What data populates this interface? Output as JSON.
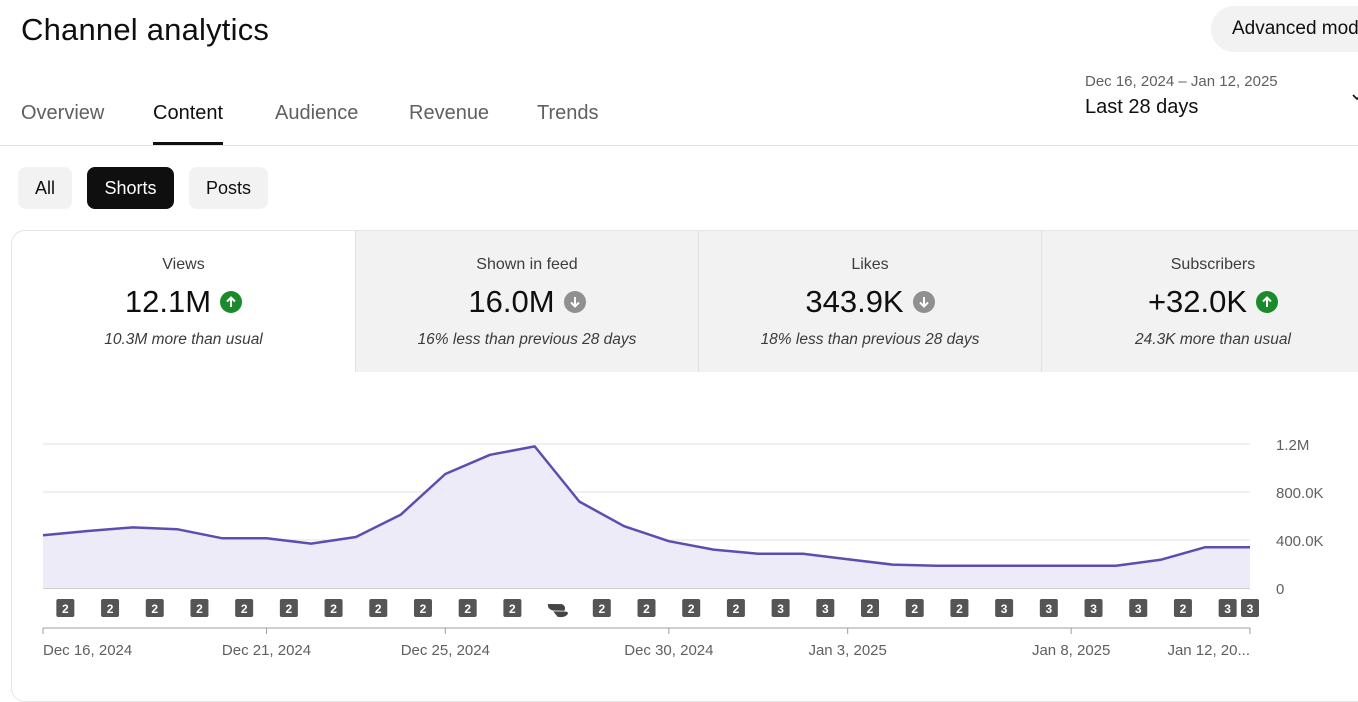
{
  "header": {
    "title": "Channel analytics",
    "advanced_mode_label": "Advanced mode"
  },
  "tabs": [
    {
      "label": "Overview",
      "active": false
    },
    {
      "label": "Content",
      "active": true
    },
    {
      "label": "Audience",
      "active": false
    },
    {
      "label": "Revenue",
      "active": false
    },
    {
      "label": "Trends",
      "active": false
    }
  ],
  "date_range": {
    "range": "Dec 16, 2024 – Jan 12, 2025",
    "preset": "Last 28 days",
    "icon": "chevron-down-icon"
  },
  "filters": [
    {
      "label": "All",
      "active": false
    },
    {
      "label": "Shorts",
      "active": true
    },
    {
      "label": "Posts",
      "active": false
    }
  ],
  "metrics": [
    {
      "label": "Views",
      "value": "12.1M",
      "trend": "up",
      "trend_icon": "arrow-up-icon",
      "description": "10.3M more than usual"
    },
    {
      "label": "Shown in feed",
      "value": "16.0M",
      "trend": "down",
      "trend_icon": "arrow-down-icon",
      "description": "16% less than previous 28 days"
    },
    {
      "label": "Likes",
      "value": "343.9K",
      "trend": "down",
      "trend_icon": "arrow-down-icon",
      "description": "18% less than previous 28 days"
    },
    {
      "label": "Subscribers",
      "value": "+32.0K",
      "trend": "up",
      "trend_icon": "arrow-up-icon",
      "description": "24.3K more than usual"
    }
  ],
  "colors": {
    "line": "#5a4fb0",
    "area": "#ecebf7",
    "trend_up": "#1b8a2b",
    "trend_down": "#909090",
    "active": "#0f0f0f"
  },
  "chart_data": {
    "type": "area",
    "x": [
      "Dec 16, 2024",
      "Dec 17, 2024",
      "Dec 18, 2024",
      "Dec 19, 2024",
      "Dec 20, 2024",
      "Dec 21, 2024",
      "Dec 22, 2024",
      "Dec 23, 2024",
      "Dec 24, 2024",
      "Dec 25, 2024",
      "Dec 26, 2024",
      "Dec 27, 2024",
      "Dec 28, 2024",
      "Dec 29, 2024",
      "Dec 30, 2024",
      "Dec 31, 2024",
      "Jan 1, 2025",
      "Jan 2, 2025",
      "Jan 3, 2025",
      "Jan 4, 2025",
      "Jan 5, 2025",
      "Jan 6, 2025",
      "Jan 7, 2025",
      "Jan 8, 2025",
      "Jan 9, 2025",
      "Jan 10, 2025",
      "Jan 11, 2025",
      "Jan 12, 2025"
    ],
    "series": [
      {
        "values": [
          440000,
          475000,
          505000,
          490000,
          415000,
          415000,
          370000,
          425000,
          610000,
          950000,
          1110000,
          1180000,
          720000,
          515000,
          390000,
          320000,
          285000,
          285000,
          240000,
          195000,
          185000,
          185000,
          185000,
          185000,
          185000,
          235000,
          340000,
          340000
        ]
      }
    ],
    "ylim": [
      0,
      1200000
    ],
    "y_ticks": [
      "0",
      "400.0K",
      "800.0K",
      "1.2M"
    ],
    "y_axis_position": "right",
    "x_tick_labels": [
      {
        "index": 0,
        "label": "Dec 16, 2024"
      },
      {
        "index": 5,
        "label": "Dec 21, 2024"
      },
      {
        "index": 9,
        "label": "Dec 25, 2024"
      },
      {
        "index": 14,
        "label": "Dec 30, 2024"
      },
      {
        "index": 18,
        "label": "Jan 3, 2025"
      },
      {
        "index": 23,
        "label": "Jan 8, 2025"
      },
      {
        "index": 27,
        "label": "Jan 12, 20..."
      }
    ],
    "grid": true,
    "uploads": [
      "2",
      "2",
      "2",
      "2",
      "2",
      "2",
      "2",
      "2",
      "2",
      "2",
      "2",
      "shorts",
      "2",
      "2",
      "2",
      "2",
      "3",
      "3",
      "2",
      "2",
      "2",
      "3",
      "3",
      "3",
      "3",
      "2",
      "3",
      "3"
    ]
  }
}
